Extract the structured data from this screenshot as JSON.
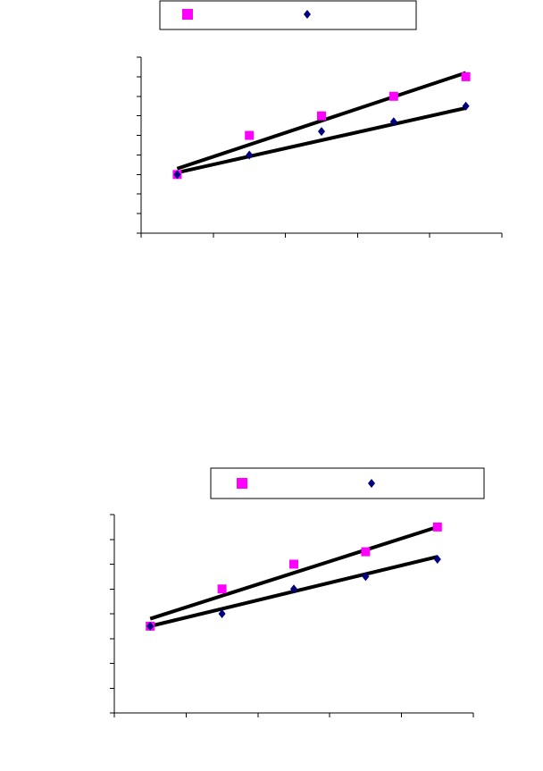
{
  "chart_data": [
    {
      "type": "scatter",
      "ylim": [
        0,
        9
      ],
      "xlim": [
        0,
        5
      ],
      "grid": false,
      "legend": "top",
      "series": [
        {
          "marker": "square",
          "color": "#FF00FF",
          "x": [
            0.5,
            1.5,
            2.5,
            3.5,
            4.5
          ],
          "y": [
            3.0,
            5.0,
            6.0,
            7.0,
            8.0
          ]
        },
        {
          "marker": "diamond",
          "color": "#000080",
          "x": [
            0.5,
            1.5,
            2.5,
            3.5,
            4.5
          ],
          "y": [
            3.0,
            4.0,
            5.2,
            5.7,
            6.5
          ]
        }
      ],
      "trendlines": [
        {
          "x": [
            0.5,
            4.5
          ],
          "y": [
            3.3,
            8.2
          ]
        },
        {
          "x": [
            0.5,
            4.5
          ],
          "y": [
            3.1,
            6.4
          ]
        }
      ]
    },
    {
      "type": "scatter",
      "ylim": [
        0,
        8
      ],
      "xlim": [
        0,
        5
      ],
      "grid": false,
      "legend": "top",
      "series": [
        {
          "marker": "square",
          "color": "#FF00FF",
          "x": [
            0.5,
            1.5,
            2.5,
            3.5,
            4.5
          ],
          "y": [
            3.5,
            5.0,
            6.0,
            6.5,
            7.5
          ]
        },
        {
          "marker": "diamond",
          "color": "#000080",
          "x": [
            0.5,
            1.5,
            2.5,
            3.5,
            4.5
          ],
          "y": [
            3.5,
            4.0,
            5.0,
            5.5,
            6.2
          ]
        }
      ],
      "trendlines": [
        {
          "x": [
            0.5,
            4.5
          ],
          "y": [
            3.8,
            7.5
          ]
        },
        {
          "x": [
            0.5,
            4.5
          ],
          "y": [
            3.5,
            6.3
          ]
        }
      ]
    }
  ]
}
